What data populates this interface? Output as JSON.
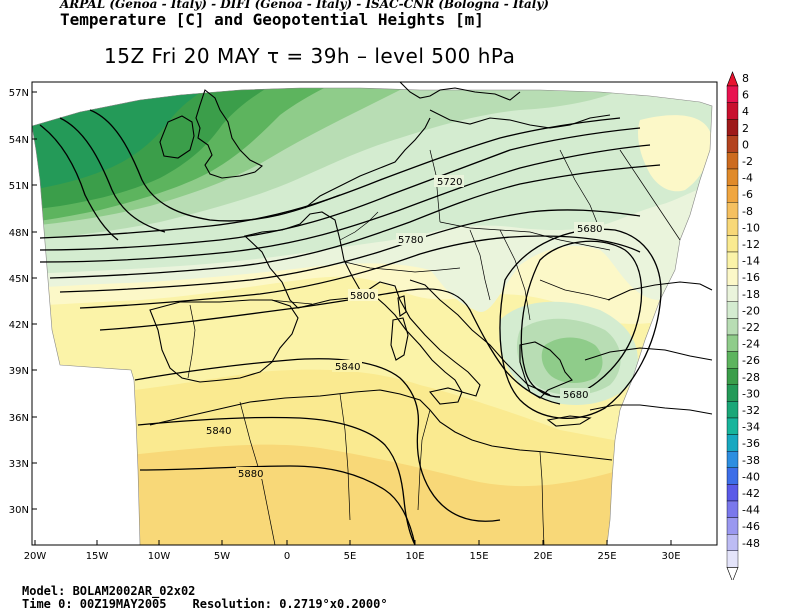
{
  "header": {
    "line1": "ARPAL (Genoa - Italy)  -  DIFI (Genoa - Italy)  -  ISAC-CNR (Bologna - Italy)",
    "line2": "Temperature [C] and Geopotential Heights [m]",
    "title": "15Z Fri 20 MAY  τ = 39h  –  level 500 hPa"
  },
  "map": {
    "lat_labels": [
      "57N",
      "54N",
      "51N",
      "48N",
      "45N",
      "42N",
      "39N",
      "36N",
      "33N",
      "30N"
    ],
    "lon_labels": [
      "20W",
      "15W",
      "10W",
      "5W",
      "0",
      "5E",
      "10E",
      "15E",
      "20E",
      "25E",
      "30E"
    ],
    "contour_labels": [
      "5720",
      "5780",
      "5680",
      "5800",
      "5840",
      "5680",
      "5840",
      "5880"
    ]
  },
  "colorbar": {
    "labels": [
      "8",
      "6",
      "4",
      "2",
      "0",
      "-2",
      "-4",
      "-6",
      "-8",
      "-10",
      "-12",
      "-14",
      "-16",
      "-18",
      "-20",
      "-22",
      "-24",
      "-26",
      "-28",
      "-30",
      "-32",
      "-34",
      "-36",
      "-38",
      "-40",
      "-42",
      "-44",
      "-46",
      "-48"
    ],
    "colors": [
      "#e8134f",
      "#c8102e",
      "#9e1a1a",
      "#b3431f",
      "#cc6b1f",
      "#e08a2a",
      "#f0a640",
      "#f5c060",
      "#f8d878",
      "#faea90",
      "#fbf3a8",
      "#fcf8c8",
      "#eaf4dc",
      "#d4ecd0",
      "#b8ddb4",
      "#8fcc8a",
      "#5db45e",
      "#3b9e4a",
      "#249a58",
      "#1aa778",
      "#18b59c",
      "#18a8c0",
      "#2d8ee0",
      "#3d6ee8",
      "#5a5ae8",
      "#7a78ec",
      "#9a98f0",
      "#bdbcf4",
      "#e4e4fa"
    ],
    "arrow_top_color": "#e8132f",
    "arrow_bottom_color": "#ffffff"
  },
  "footer": {
    "model": "Model: BOLAM2002AR_02x02",
    "time0": "Time 0: 00Z19MAY2005",
    "resolution": "Resolution: 0.2719°x0.2000°"
  }
}
